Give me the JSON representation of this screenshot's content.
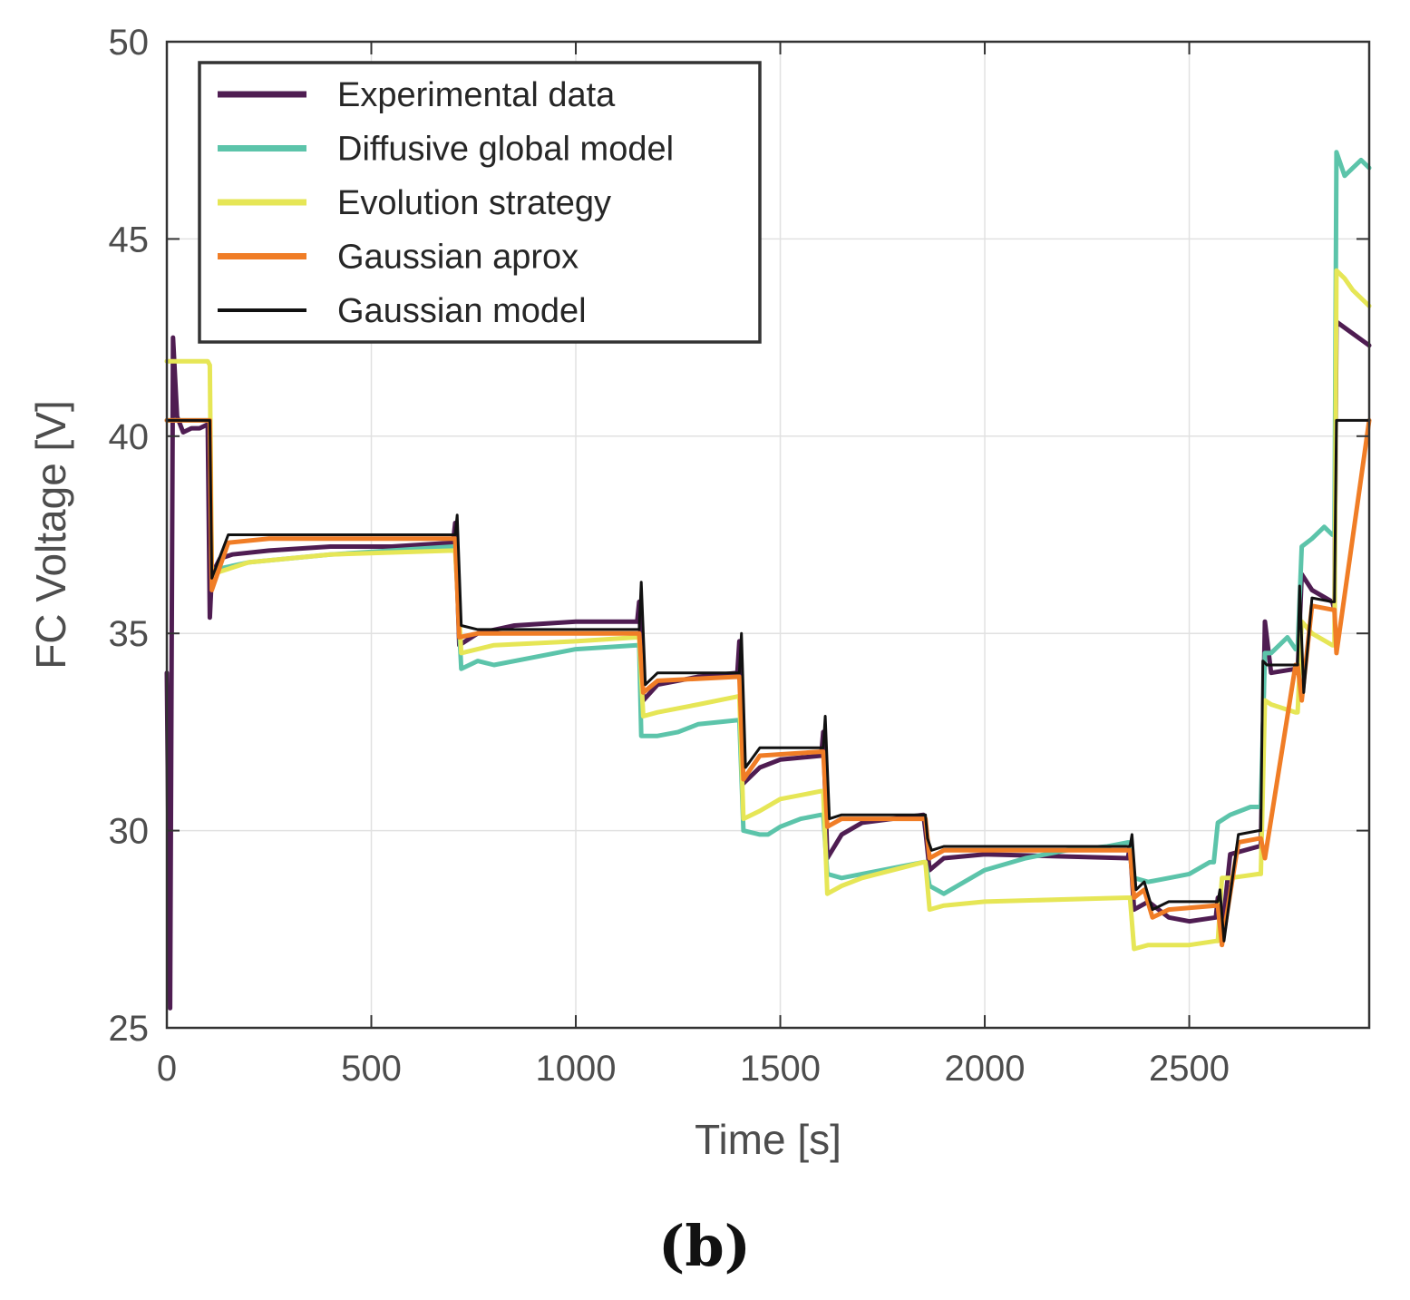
{
  "chart_data": {
    "type": "line",
    "title": "",
    "xlabel": "Time [s]",
    "ylabel": "FC Voltage [V]",
    "xlim": [
      0,
      2940
    ],
    "ylim": [
      25,
      50
    ],
    "xticks": [
      0,
      500,
      1000,
      1500,
      2000,
      2500
    ],
    "yticks": [
      25,
      30,
      35,
      40,
      45,
      50
    ],
    "xtick_labels": [
      "0",
      "500",
      "1000",
      "1500",
      "2000",
      "2500"
    ],
    "ytick_labels": [
      "25",
      "30",
      "35",
      "40",
      "45",
      "50"
    ],
    "grid": true,
    "legend_position": "top-left",
    "caption": "(b)",
    "series": [
      {
        "name": "Experimental data",
        "color": "#4f1d52",
        "x": [
          0,
          8,
          15,
          25,
          40,
          60,
          80,
          100,
          105,
          110,
          130,
          160,
          250,
          400,
          550,
          700,
          705,
          715,
          760,
          850,
          1000,
          1150,
          1155,
          1165,
          1200,
          1300,
          1395,
          1400,
          1410,
          1450,
          1500,
          1600,
          1605,
          1615,
          1650,
          1700,
          1850,
          1855,
          1865,
          1900,
          2000,
          2350,
          2355,
          2365,
          2400,
          2450,
          2500,
          2565,
          2570,
          2580,
          2600,
          2670,
          2675,
          2685,
          2700,
          2760,
          2765,
          2775,
          2800,
          2850,
          2855,
          2860,
          2900,
          2940
        ],
        "values": [
          34,
          25.5,
          42.5,
          40.5,
          40.1,
          40.2,
          40.2,
          40.3,
          35.4,
          36.5,
          36.9,
          37.0,
          37.1,
          37.2,
          37.2,
          37.3,
          37.8,
          34.7,
          35.0,
          35.2,
          35.3,
          35.3,
          35.8,
          33.3,
          33.7,
          33.9,
          34.0,
          34.8,
          31.2,
          31.6,
          31.8,
          31.9,
          32.5,
          29.3,
          29.9,
          30.2,
          30.4,
          30.0,
          29.0,
          29.3,
          29.4,
          29.3,
          29.6,
          28.0,
          28.2,
          27.8,
          27.7,
          27.8,
          28.3,
          27.4,
          29.4,
          29.6,
          29.6,
          35.3,
          34.0,
          34.1,
          34.0,
          36.5,
          36.1,
          35.8,
          35.6,
          42.9,
          42.6,
          42.3
        ]
      },
      {
        "name": "Diffusive global model",
        "color": "#5cc4aa",
        "x": [
          0,
          100,
          105,
          110,
          200,
          400,
          700,
          705,
          720,
          760,
          800,
          900,
          1000,
          1150,
          1155,
          1160,
          1200,
          1250,
          1300,
          1395,
          1400,
          1410,
          1450,
          1470,
          1500,
          1550,
          1600,
          1605,
          1615,
          1650,
          1700,
          1800,
          1850,
          1855,
          1865,
          1900,
          2000,
          2100,
          2200,
          2300,
          2350,
          2355,
          2365,
          2400,
          2450,
          2500,
          2550,
          2560,
          2570,
          2600,
          2650,
          2670,
          2675,
          2685,
          2700,
          2740,
          2760,
          2765,
          2775,
          2800,
          2830,
          2850,
          2855,
          2860,
          2880,
          2900,
          2920,
          2940
        ],
        "values": [
          40.4,
          40.4,
          40.4,
          36.6,
          36.8,
          37.0,
          37.2,
          37.2,
          34.1,
          34.3,
          34.2,
          34.4,
          34.6,
          34.7,
          34.7,
          32.4,
          32.4,
          32.5,
          32.7,
          32.8,
          32.8,
          30.0,
          29.9,
          29.9,
          30.1,
          30.3,
          30.4,
          30.4,
          28.9,
          28.8,
          28.9,
          29.1,
          29.2,
          29.2,
          28.6,
          28.4,
          29.0,
          29.3,
          29.5,
          29.6,
          29.7,
          29.7,
          28.8,
          28.7,
          28.8,
          28.9,
          29.2,
          29.2,
          30.2,
          30.4,
          30.6,
          30.6,
          30.6,
          34.5,
          34.5,
          34.9,
          34.6,
          34.6,
          37.2,
          37.4,
          37.7,
          37.5,
          37.5,
          47.2,
          46.6,
          46.8,
          47.0,
          46.8
        ]
      },
      {
        "name": "Evolution strategy",
        "color": "#e6e656",
        "x": [
          0,
          100,
          105,
          110,
          200,
          400,
          700,
          705,
          720,
          800,
          1000,
          1150,
          1155,
          1165,
          1200,
          1300,
          1395,
          1400,
          1410,
          1450,
          1500,
          1600,
          1605,
          1615,
          1650,
          1700,
          1850,
          1855,
          1865,
          1900,
          2000,
          2350,
          2355,
          2365,
          2400,
          2500,
          2565,
          2570,
          2580,
          2600,
          2670,
          2675,
          2685,
          2700,
          2760,
          2765,
          2775,
          2800,
          2850,
          2855,
          2860,
          2880,
          2900,
          2940
        ],
        "values": [
          41.9,
          41.9,
          41.8,
          36.5,
          36.8,
          37.0,
          37.1,
          37.1,
          34.5,
          34.7,
          34.8,
          34.9,
          34.9,
          32.9,
          33.0,
          33.2,
          33.4,
          33.4,
          30.3,
          30.5,
          30.8,
          31.0,
          31.0,
          28.4,
          28.6,
          28.8,
          29.2,
          29.2,
          28.0,
          28.1,
          28.2,
          28.3,
          28.3,
          27.0,
          27.1,
          27.1,
          27.2,
          27.2,
          28.8,
          28.8,
          28.9,
          28.9,
          33.3,
          33.2,
          33.0,
          33.0,
          35.3,
          35.0,
          34.7,
          34.7,
          44.2,
          44.0,
          43.7,
          43.3
        ]
      },
      {
        "name": "Gaussian aprox",
        "color": "#f07d26",
        "x": [
          0,
          100,
          105,
          110,
          150,
          250,
          700,
          705,
          715,
          760,
          1150,
          1155,
          1165,
          1200,
          1395,
          1400,
          1410,
          1450,
          1600,
          1605,
          1615,
          1650,
          1850,
          1855,
          1865,
          1900,
          2350,
          2355,
          2365,
          2390,
          2410,
          2450,
          2565,
          2570,
          2580,
          2620,
          2670,
          2675,
          2685,
          2760,
          2765,
          2775,
          2800,
          2850,
          2855,
          2860,
          2940
        ],
        "values": [
          40.4,
          40.4,
          40.4,
          36.1,
          37.3,
          37.4,
          37.4,
          37.4,
          34.9,
          35.0,
          35.0,
          35.0,
          33.5,
          33.8,
          33.9,
          33.9,
          31.3,
          31.9,
          32.0,
          32.0,
          30.1,
          30.3,
          30.3,
          30.3,
          29.3,
          29.5,
          29.5,
          29.5,
          28.3,
          28.5,
          27.8,
          28.0,
          28.1,
          28.1,
          27.1,
          29.7,
          29.8,
          29.8,
          29.3,
          34.2,
          34.2,
          33.3,
          35.7,
          35.6,
          35.6,
          34.5,
          40.4
        ]
      },
      {
        "name": "Gaussian model",
        "color": "#111111",
        "x": [
          0,
          100,
          105,
          110,
          150,
          250,
          700,
          705,
          710,
          720,
          760,
          1150,
          1155,
          1160,
          1170,
          1200,
          1395,
          1400,
          1405,
          1415,
          1450,
          1600,
          1605,
          1610,
          1620,
          1650,
          1850,
          1855,
          1860,
          1870,
          1900,
          2350,
          2355,
          2360,
          2370,
          2390,
          2410,
          2450,
          2565,
          2570,
          2575,
          2585,
          2620,
          2670,
          2675,
          2680,
          2690,
          2760,
          2765,
          2770,
          2780,
          2800,
          2850,
          2855,
          2860,
          2940
        ],
        "values": [
          40.4,
          40.4,
          40.4,
          36.4,
          37.5,
          37.5,
          37.5,
          37.5,
          38.0,
          35.2,
          35.1,
          35.1,
          35.1,
          36.3,
          33.7,
          34.0,
          34.0,
          34.0,
          35.0,
          31.6,
          32.1,
          32.1,
          32.1,
          32.9,
          30.3,
          30.4,
          30.4,
          30.4,
          29.8,
          29.5,
          29.6,
          29.6,
          29.6,
          29.9,
          28.5,
          28.7,
          28.0,
          28.2,
          28.2,
          28.2,
          28.5,
          27.2,
          29.9,
          30.0,
          30.0,
          34.3,
          34.2,
          34.2,
          34.2,
          36.2,
          33.5,
          35.9,
          35.8,
          35.8,
          40.4,
          40.4
        ]
      }
    ]
  }
}
